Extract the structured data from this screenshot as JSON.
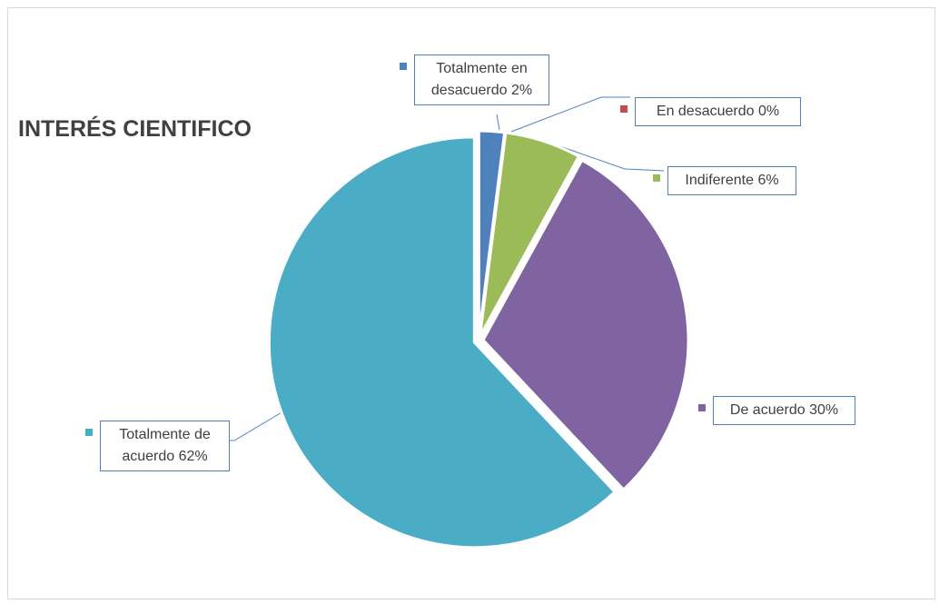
{
  "chart_data": {
    "type": "pie",
    "title": "INTERÉS CIENTIFICO",
    "categories": [
      "Totalmente en desacuerdo",
      "En desacuerdo",
      "Indiferente",
      "De acuerdo",
      "Totalmente de acuerdo"
    ],
    "values": [
      2,
      0,
      6,
      30,
      62
    ],
    "value_labels": [
      "2%",
      "0%",
      "6%",
      "30%",
      "62%"
    ],
    "colors": [
      "#4f81bd",
      "#c0504d",
      "#9bbb59",
      "#8064a2",
      "#4bacc6"
    ]
  }
}
